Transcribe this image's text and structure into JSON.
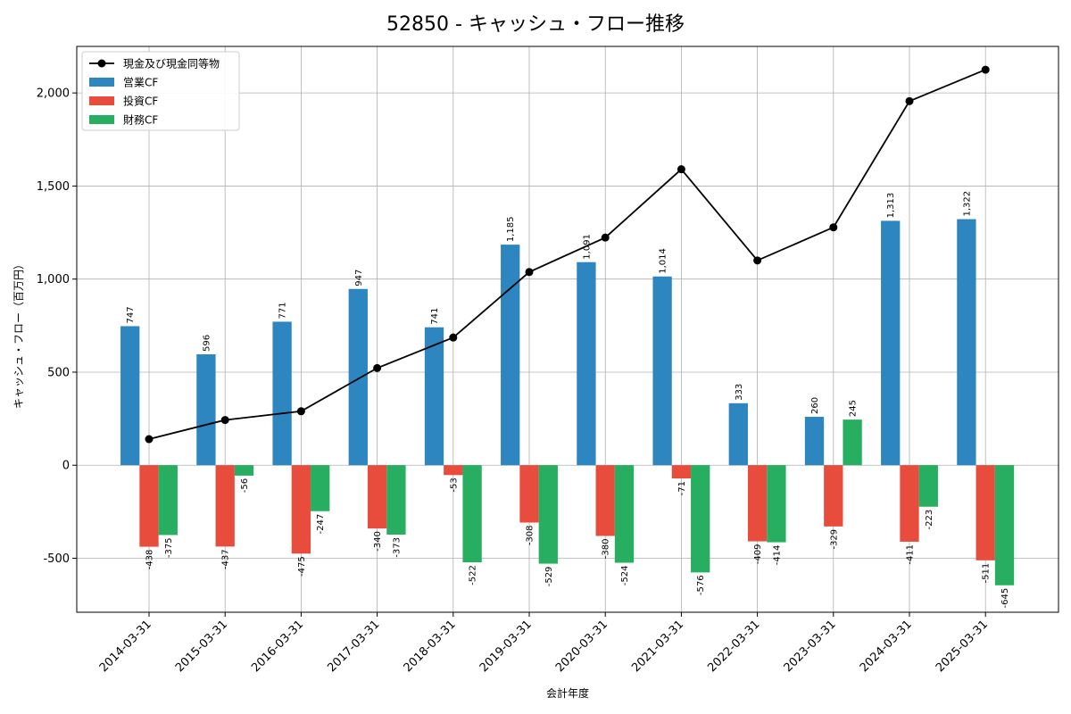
{
  "chart_data": {
    "type": "bar",
    "title": "52850 - キャッシュ・フロー推移",
    "xlabel": "会計年度",
    "ylabel": "キャッシュ・フロー（百万円）",
    "ylim": [
      -790,
      2250
    ],
    "yticks": [
      -500,
      0,
      500,
      1000,
      1500,
      2000
    ],
    "ytick_labels": [
      "-500",
      "0",
      "500",
      "1,000",
      "1,500",
      "2,000"
    ],
    "grid": true,
    "legend_position": "top-left",
    "categories": [
      "2014-03-31",
      "2015-03-31",
      "2016-03-31",
      "2017-03-31",
      "2018-03-31",
      "2019-03-31",
      "2020-03-31",
      "2021-03-31",
      "2022-03-31",
      "2023-03-31",
      "2024-03-31",
      "2025-03-31"
    ],
    "series": [
      {
        "name": "営業CF",
        "kind": "bar",
        "color": "#2e86c1",
        "values": [
          747,
          596,
          771,
          947,
          741,
          1185,
          1091,
          1014,
          333,
          260,
          1313,
          1322
        ],
        "labels": [
          "747",
          "596",
          "771",
          "947",
          "741",
          "1,185",
          "1,091",
          "1,014",
          "333",
          "260",
          "1,313",
          "1,322"
        ]
      },
      {
        "name": "投資CF",
        "kind": "bar",
        "color": "#e74c3c",
        "values": [
          -438,
          -437,
          -475,
          -340,
          -53,
          -308,
          -380,
          -71,
          -409,
          -329,
          -411,
          -511
        ],
        "labels": [
          "-438",
          "-437",
          "-475",
          "-340",
          "-53",
          "-308",
          "-380",
          "-71",
          "-409",
          "-329",
          "-411",
          "-511"
        ]
      },
      {
        "name": "財務CF",
        "kind": "bar",
        "color": "#27ae60",
        "values": [
          -375,
          -56,
          -247,
          -373,
          -522,
          -529,
          -524,
          -576,
          -414,
          245,
          -223,
          -645
        ],
        "labels": [
          "-375",
          "-56",
          "-247",
          "-373",
          "-522",
          "-529",
          "-524",
          "-576",
          "-414",
          "245",
          "-223",
          "-645"
        ]
      },
      {
        "name": "現金及び現金同等物",
        "kind": "line",
        "color": "#000000",
        "values": [
          140,
          243,
          290,
          522,
          686,
          1038,
          1223,
          1590,
          1100,
          1278,
          1956,
          2125
        ]
      }
    ]
  }
}
